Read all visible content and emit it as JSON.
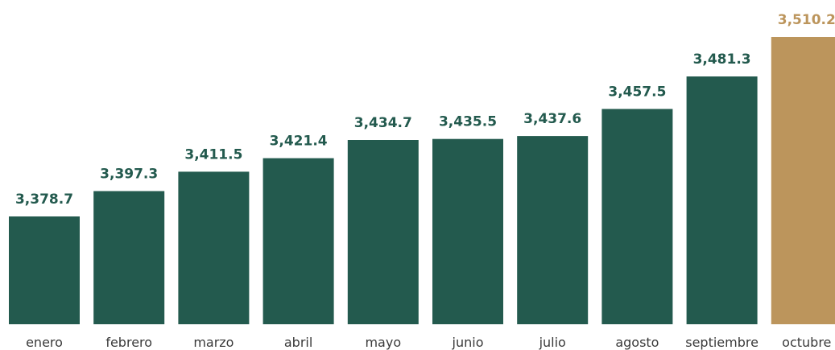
{
  "chart_data": {
    "type": "bar",
    "categories": [
      "enero",
      "febrero",
      "marzo",
      "abril",
      "mayo",
      "junio",
      "julio",
      "agosto",
      "septiembre",
      "octubre"
    ],
    "values": [
      3378.7,
      3397.3,
      3411.5,
      3421.4,
      3434.7,
      3435.5,
      3437.6,
      3457.5,
      3481.3,
      3510.2
    ],
    "value_labels": [
      "3,378.7",
      "3,397.3",
      "3,411.5",
      "3,421.4",
      "3,434.7",
      "3,435.5",
      "3,437.6",
      "3,457.5",
      "3,481.3",
      "3,510.2"
    ],
    "highlight_index": 9,
    "title": "",
    "xlabel": "",
    "ylabel": "",
    "grid": false,
    "legend": "none",
    "colors": {
      "bar": "#235a4e",
      "highlight": "#bc955c"
    }
  }
}
